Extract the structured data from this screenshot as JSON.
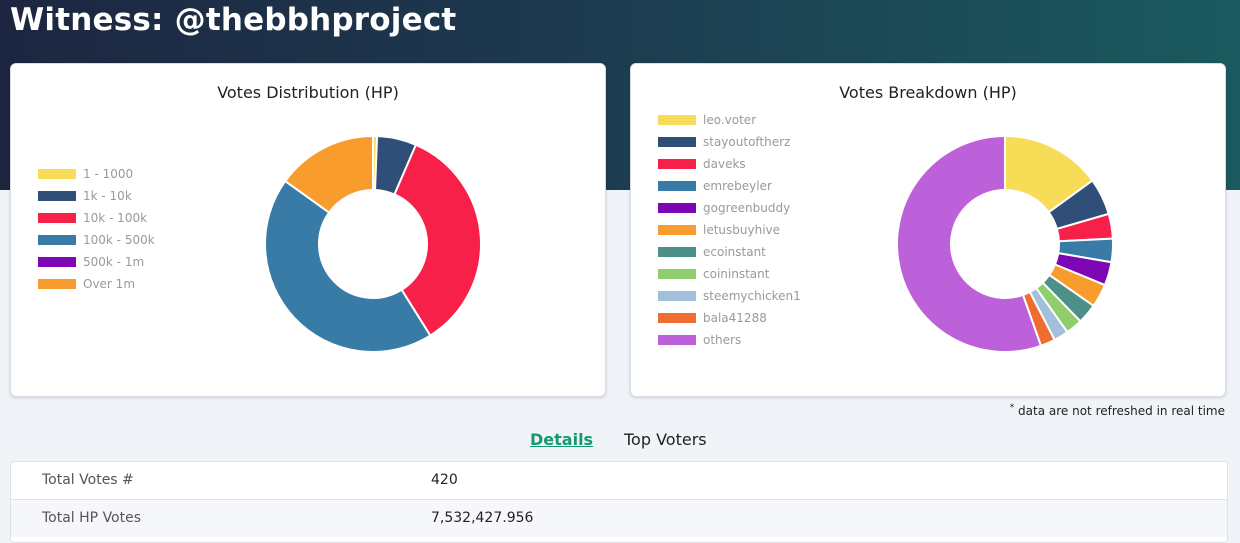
{
  "page": {
    "title": "Witness: @thebbhproject",
    "note": "data are not refreshed in real time",
    "note_mark": "*"
  },
  "tabs": [
    {
      "label": "Details",
      "active": true
    },
    {
      "label": "Top Voters",
      "active": false
    }
  ],
  "details": [
    {
      "label": "Total Votes #",
      "value": "420"
    },
    {
      "label": "Total HP Votes",
      "value": "7,532,427.956"
    }
  ],
  "colors": {
    "accent": "#159a6e",
    "header_start": "#1d2641",
    "header_end": "#1a5a5e"
  },
  "chart_data": [
    {
      "type": "pie",
      "donut": true,
      "title": "Votes Distribution (HP)",
      "legend_position": "left",
      "categories": [
        "1 - 1000",
        "1k - 10k",
        "10k - 100k",
        "100k - 500k",
        "500k - 1m",
        "Over 1m"
      ],
      "values": [
        0.6,
        5.9,
        34.6,
        43.8,
        0,
        15.1
      ],
      "colors": [
        "#f7dc57",
        "#2f4e78",
        "#f72048",
        "#387ba6",
        "#7d06b5",
        "#f79c2d"
      ]
    },
    {
      "type": "pie",
      "donut": true,
      "title": "Votes Breakdown (HP)",
      "legend_position": "left",
      "categories": [
        "leo.voter",
        "stayoutoftherz",
        "daveks",
        "emrebeyler",
        "gogreenbuddy",
        "letusbuyhive",
        "ecoinstant",
        "coininstant",
        "steemychicken1",
        "bala41288",
        "others"
      ],
      "values": [
        15.0,
        5.5,
        3.7,
        3.5,
        3.5,
        3.5,
        3.0,
        2.5,
        2.2,
        2.2,
        55.4
      ],
      "colors": [
        "#f7dc57",
        "#2f4e78",
        "#f72048",
        "#387ba6",
        "#7d06b5",
        "#f79c2d",
        "#4c9189",
        "#8fcd6f",
        "#a2c0dc",
        "#ef6d32",
        "#bc61d9"
      ]
    }
  ]
}
